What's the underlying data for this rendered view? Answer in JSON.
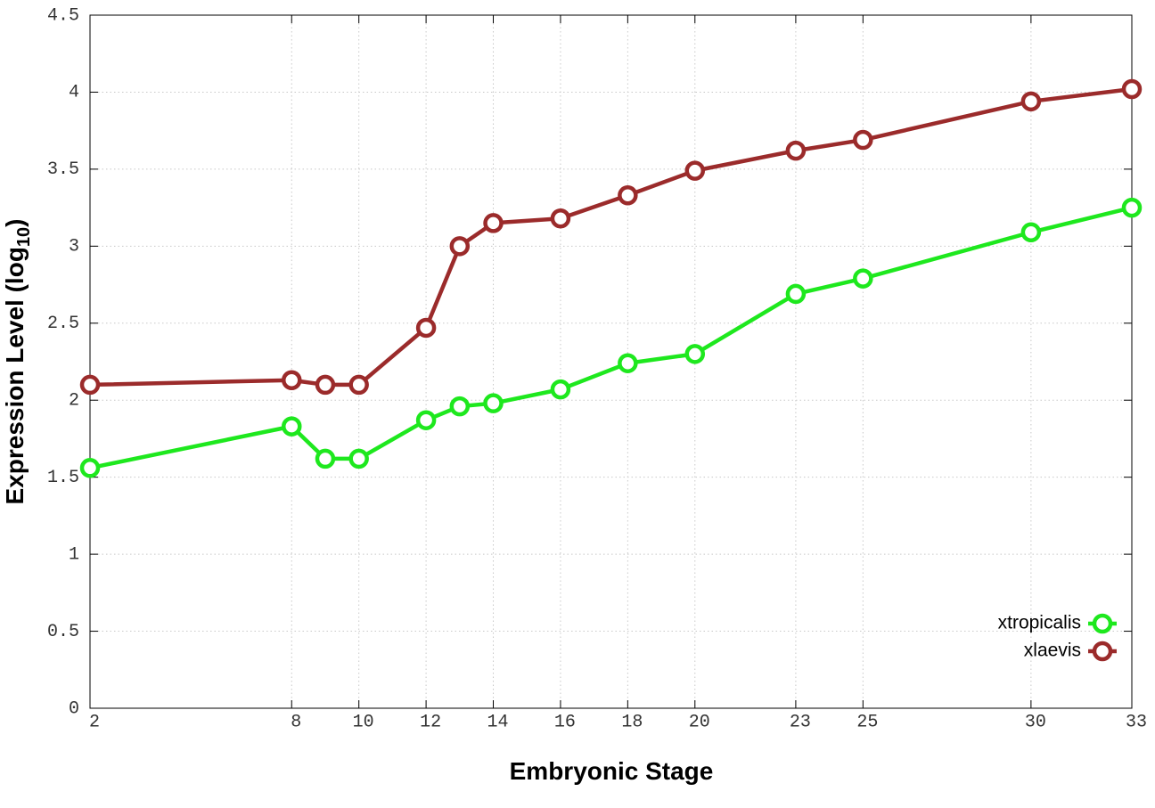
{
  "chart_data": {
    "type": "line",
    "x_label": "Embryonic Stage",
    "y_label": {
      "text": "Expression Level (log",
      "subscript": "10",
      "suffix": ")"
    },
    "x": [
      2,
      8,
      9,
      10,
      12,
      13,
      14,
      16,
      18,
      20,
      23,
      25,
      30,
      33
    ],
    "series": [
      {
        "name": "xtropicalis",
        "color": "#1ee81e",
        "values": [
          1.56,
          1.83,
          1.62,
          1.62,
          1.87,
          1.96,
          1.98,
          2.07,
          2.24,
          2.3,
          2.69,
          2.79,
          3.09,
          3.25
        ]
      },
      {
        "name": "xlaevis",
        "color": "#9b2b2b",
        "values": [
          2.1,
          2.13,
          2.1,
          2.1,
          2.47,
          3.0,
          3.15,
          3.18,
          3.33,
          3.49,
          3.62,
          3.69,
          3.94,
          4.02
        ]
      }
    ],
    "xlim": [
      2,
      33
    ],
    "xticks": [
      2,
      8,
      10,
      12,
      14,
      16,
      18,
      20,
      23,
      25,
      30,
      33
    ],
    "ylim": [
      0,
      4.5
    ],
    "yticks": [
      0,
      0.5,
      1,
      1.5,
      2,
      2.5,
      3,
      3.5,
      4,
      4.5
    ],
    "grid": true,
    "legend": "lower right"
  }
}
